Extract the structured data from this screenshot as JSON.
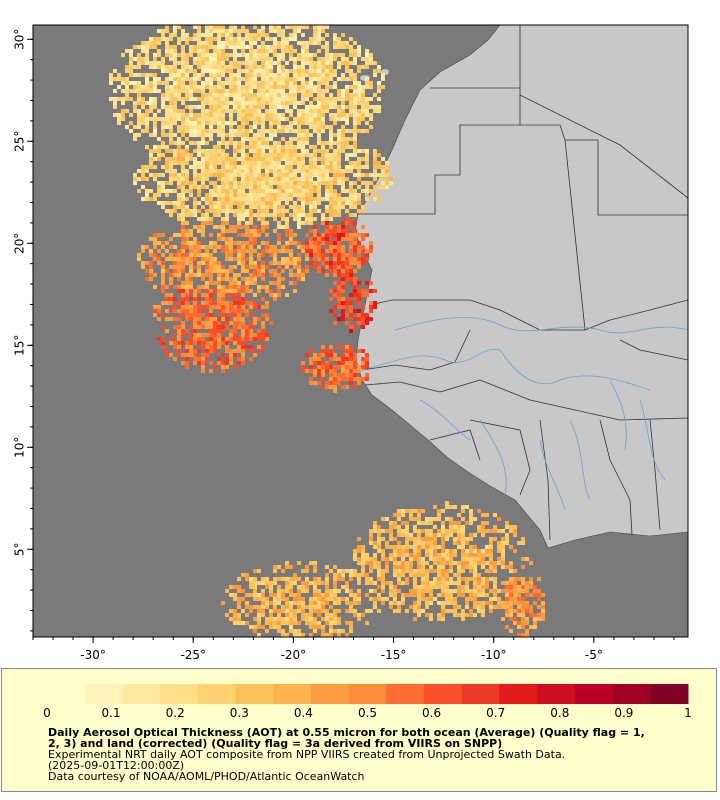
{
  "map": {
    "projection": "lat-lon",
    "lon_range": [
      -33,
      -0.3
    ],
    "lat_range": [
      0.7,
      30.7
    ],
    "x_ticks": [
      {
        "value": -30,
        "label": "-30°"
      },
      {
        "value": -25,
        "label": "-25°"
      },
      {
        "value": -20,
        "label": "-20°"
      },
      {
        "value": -15,
        "label": "-15°"
      },
      {
        "value": -10,
        "label": "-10°"
      },
      {
        "value": -5,
        "label": "-5°"
      }
    ],
    "y_ticks": [
      {
        "value": 30,
        "label": "30°"
      },
      {
        "value": 25,
        "label": "25°"
      },
      {
        "value": 20,
        "label": "20°"
      },
      {
        "value": 15,
        "label": "15°"
      },
      {
        "value": 10,
        "label": "10°"
      },
      {
        "value": 5,
        "label": "5°"
      }
    ],
    "colors": {
      "ocean_no_data": "#7a7a7a",
      "land": "#c8c8c8",
      "borders": "#333333",
      "rivers": "#6aa0d8",
      "panel_background": "#ffffcc"
    }
  },
  "colorbar": {
    "min": 0,
    "max": 1,
    "labels": [
      "0",
      "0.1",
      "0.2",
      "0.3",
      "0.4",
      "0.5",
      "0.6",
      "0.7",
      "0.8",
      "0.9",
      "1"
    ],
    "colors": [
      "#ffffcc",
      "#fff3b8",
      "#ffe9a0",
      "#ffdd88",
      "#ffd070",
      "#fec25c",
      "#feb24c",
      "#fd9d43",
      "#fd8d3c",
      "#fc6c33",
      "#fc4e2a",
      "#ee3a24",
      "#e31a1c",
      "#cc0f20",
      "#bd0026",
      "#a00026",
      "#800026"
    ]
  },
  "text": {
    "title_line1": "Daily Aerosol Optical Thickness (AOT) at 0.55 micron for both ocean (Average) (Quality flag = 1,",
    "title_line2": "2, 3) and land (corrected) (Quality flag = 3a derived from VIIRS on SNPP)",
    "subtitle_line1": "Experimental NRT daily AOT composite from NPP VIIRS created from Unprojected Swath Data.",
    "subtitle_line2": "(2025-09-01T12:00:00Z)",
    "credit": "Data courtesy of NOAA/AOML/PHOD/Atlantic OceanWatch"
  }
}
